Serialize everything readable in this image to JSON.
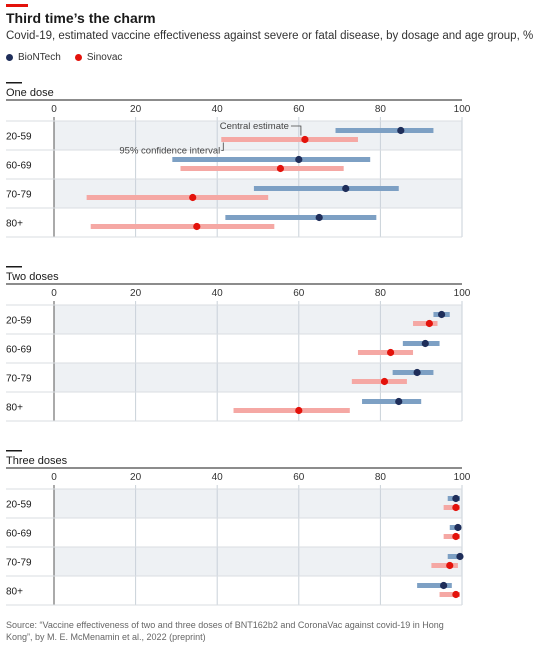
{
  "header": {
    "title": "Third time’s the charm",
    "subtitle": "Covid-19, estimated vaccine effectiveness against severe or fatal disease, by dosage and age group, %"
  },
  "legend": {
    "items": [
      {
        "label": "BioNTech",
        "color": "#1f2e5a"
      },
      {
        "label": "Sinovac",
        "color": "#e3120b"
      }
    ]
  },
  "colors": {
    "biontech_bar": "#7da0c4",
    "biontech_dot": "#1f2e5a",
    "sinovac_bar": "#f5a8a4",
    "sinovac_dot": "#e3120b",
    "grid": "#c9d1d9",
    "band": "#eef1f4"
  },
  "annotations": {
    "central_estimate": "Central estimate",
    "confidence_interval": "95% confidence interval"
  },
  "chart_data": [
    {
      "type": "range-dot",
      "title": "One dose",
      "xlim": [
        0,
        100
      ],
      "ticks": [
        "0",
        "20",
        "40",
        "60",
        "80",
        "100"
      ],
      "categories": [
        "20-59",
        "60-69",
        "70-79",
        "80+"
      ],
      "series": [
        {
          "name": "BioNTech",
          "estimate": [
            85,
            60,
            71.5,
            65
          ],
          "low": [
            69,
            29,
            49,
            42
          ],
          "high": [
            93,
            77.5,
            84.5,
            79
          ]
        },
        {
          "name": "Sinovac",
          "estimate": [
            61.5,
            55.5,
            34,
            35
          ],
          "low": [
            41,
            31,
            8,
            9
          ],
          "high": [
            74.5,
            71,
            52.5,
            54
          ]
        }
      ]
    },
    {
      "type": "range-dot",
      "title": "Two doses",
      "xlim": [
        0,
        100
      ],
      "ticks": [
        "0",
        "20",
        "40",
        "60",
        "80",
        "100"
      ],
      "categories": [
        "20-59",
        "60-69",
        "70-79",
        "80+"
      ],
      "series": [
        {
          "name": "BioNTech",
          "estimate": [
            95,
            91,
            89,
            84.5
          ],
          "low": [
            93,
            85.5,
            83,
            75.5
          ],
          "high": [
            97,
            94.5,
            93,
            90
          ]
        },
        {
          "name": "Sinovac",
          "estimate": [
            92,
            82.5,
            81,
            60
          ],
          "low": [
            88,
            74.5,
            73,
            44
          ],
          "high": [
            94,
            88,
            86.5,
            72.5
          ]
        }
      ]
    },
    {
      "type": "range-dot",
      "title": "Three doses",
      "xlim": [
        0,
        100
      ],
      "ticks": [
        "0",
        "20",
        "40",
        "60",
        "80",
        "100"
      ],
      "categories": [
        "20-59",
        "60-69",
        "70-79",
        "80+"
      ],
      "series": [
        {
          "name": "BioNTech",
          "estimate": [
            98.5,
            99,
            99.5,
            95.5
          ],
          "low": [
            96.5,
            97,
            96.5,
            89
          ],
          "high": [
            99.5,
            99.8,
            99.8,
            97.5
          ]
        },
        {
          "name": "Sinovac",
          "estimate": [
            98.5,
            98.5,
            97,
            98.5
          ],
          "low": [
            95.5,
            95.5,
            92.5,
            94.5
          ],
          "high": [
            99.5,
            99.5,
            99,
            99.5
          ]
        }
      ]
    }
  ],
  "source": "Source: “Vaccine effectiveness of two and three doses of BNT162b2 and CoronaVac against covid-19 in Hong Kong”, by M. E. McMenamin et al., 2022 (preprint)"
}
